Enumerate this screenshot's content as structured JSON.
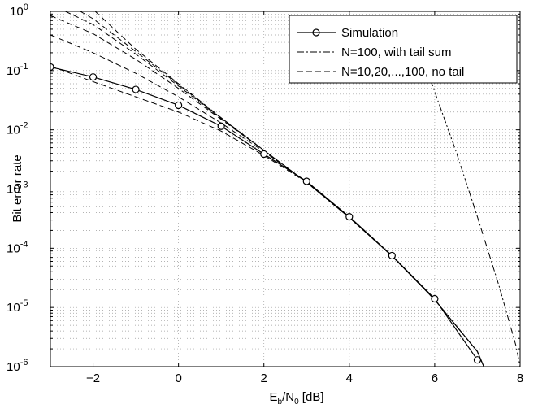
{
  "chart_data": {
    "type": "line",
    "title": "",
    "xlabel": "E_b/N_0 [dB]",
    "xlabel_main": "E",
    "xlabel_sub1": "b",
    "xlabel_mid": "/N",
    "xlabel_sub2": "0",
    "xlabel_tail": " [dB]",
    "ylabel": "Bit error rate",
    "xlim": [
      -3,
      8
    ],
    "ylim": [
      1e-06,
      1
    ],
    "yscale": "log",
    "grid": true,
    "grid_style": "dotted",
    "legend_position": "top-right",
    "x_ticks": [
      -2,
      0,
      2,
      4,
      6,
      8
    ],
    "x_tick_labels": [
      "−2",
      "0",
      "2",
      "4",
      "6",
      "8"
    ],
    "y_tick_exponents": [
      "0",
      "-1",
      "-2",
      "-3",
      "-4",
      "-5",
      "-6"
    ],
    "y_tick_base": "10",
    "series": [
      {
        "name": "Simulation",
        "style": "solid",
        "marker": "circle",
        "color": "#000000",
        "points": [
          [
            -3,
            0.115
          ],
          [
            -2,
            0.078
          ],
          [
            -1,
            0.048
          ],
          [
            0,
            0.026
          ],
          [
            1,
            0.0115
          ],
          [
            2,
            0.0039
          ],
          [
            3,
            0.00135
          ],
          [
            4,
            0.00034
          ],
          [
            5,
            7.5e-05
          ],
          [
            6,
            1.4e-05
          ],
          [
            7,
            1.3e-06
          ]
        ]
      },
      {
        "name": "N=100, with tail sum",
        "style": "dashdot",
        "marker": "none",
        "color": "#000000",
        "points": [
          [
            5.6,
            0.29
          ],
          [
            6.0,
            0.044
          ],
          [
            6.5,
            0.0043
          ],
          [
            7.0,
            0.00034
          ],
          [
            7.5,
            2.4e-05
          ],
          [
            7.9,
            2.3e-06
          ],
          [
            8.0,
            1e-06
          ]
        ]
      },
      {
        "name": "N=10,20,...,100, no tail",
        "style": "dashed",
        "marker": "none",
        "color": "#000000",
        "curves": [
          [
            [
              -3,
              0.12
            ],
            [
              -2,
              0.065
            ],
            [
              -1,
              0.036
            ],
            [
              0,
              0.02
            ],
            [
              1,
              0.0095
            ],
            [
              2,
              0.0037
            ],
            [
              3,
              0.0013
            ],
            [
              4,
              0.00033
            ],
            [
              5,
              7.4e-05
            ],
            [
              6,
              1.35e-05
            ],
            [
              7,
              1.8e-06
            ],
            [
              7.15,
              1e-06
            ]
          ],
          [
            [
              -3,
              0.4
            ],
            [
              -2,
              0.2
            ],
            [
              -1,
              0.09
            ],
            [
              0,
              0.036
            ],
            [
              1,
              0.013
            ],
            [
              2,
              0.0043
            ],
            [
              3,
              0.0013
            ],
            [
              4,
              0.00033
            ],
            [
              5,
              7.4e-05
            ],
            [
              6,
              1.35e-05
            ],
            [
              7,
              1.8e-06
            ],
            [
              7.15,
              1e-06
            ]
          ],
          [
            [
              -3,
              0.85
            ],
            [
              -2,
              0.42
            ],
            [
              -1,
              0.155
            ],
            [
              0,
              0.05
            ],
            [
              1,
              0.015
            ],
            [
              2,
              0.0045
            ],
            [
              3,
              0.0013
            ],
            [
              4,
              0.00033
            ],
            [
              5,
              7.4e-05
            ],
            [
              6,
              1.35e-05
            ],
            [
              7,
              1.8e-06
            ],
            [
              7.15,
              1e-06
            ]
          ],
          [
            [
              -2.65,
              1.0
            ],
            [
              -2,
              0.6
            ],
            [
              -1,
              0.19
            ],
            [
              0,
              0.055
            ],
            [
              1,
              0.0155
            ],
            [
              2,
              0.0045
            ],
            [
              3,
              0.0013
            ],
            [
              4,
              0.00033
            ],
            [
              5,
              7.4e-05
            ],
            [
              6,
              1.35e-05
            ],
            [
              7,
              1.8e-06
            ],
            [
              7.15,
              1e-06
            ]
          ],
          [
            [
              -2.3,
              1.0
            ],
            [
              -2,
              0.75
            ],
            [
              -1,
              0.21
            ],
            [
              0,
              0.058
            ],
            [
              1,
              0.0158
            ],
            [
              2,
              0.0045
            ],
            [
              3,
              0.0013
            ],
            [
              4,
              0.00033
            ],
            [
              5,
              7.4e-05
            ],
            [
              6,
              1.35e-05
            ],
            [
              7,
              1.8e-06
            ],
            [
              7.15,
              1e-06
            ]
          ],
          [
            [
              -1.95,
              1.0
            ],
            [
              -1,
              0.23
            ],
            [
              0,
              0.06
            ],
            [
              1,
              0.016
            ],
            [
              2,
              0.0045
            ],
            [
              3,
              0.0013
            ],
            [
              4,
              0.00033
            ],
            [
              5,
              7.4e-05
            ],
            [
              6,
              1.35e-05
            ],
            [
              7,
              1.8e-06
            ],
            [
              7.15,
              1e-06
            ]
          ]
        ]
      }
    ]
  }
}
